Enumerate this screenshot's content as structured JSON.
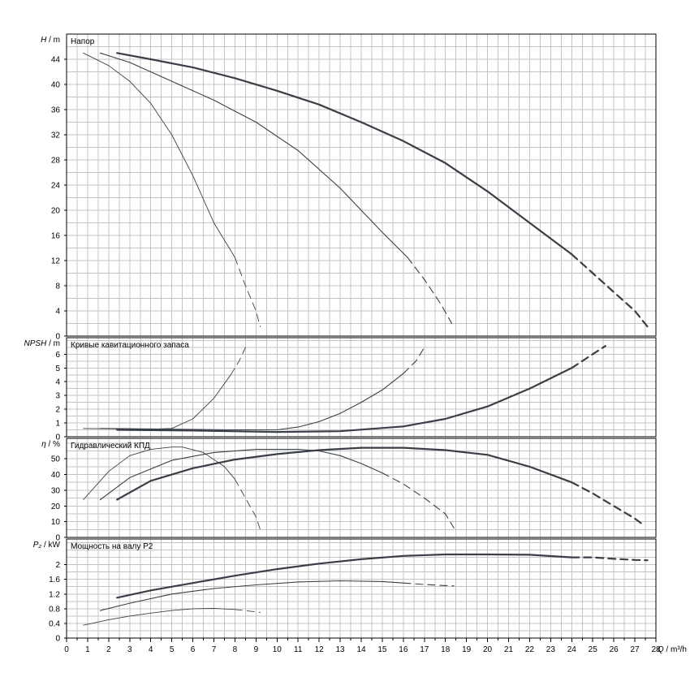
{
  "chart_data": {
    "type": "line",
    "x": {
      "label": "Q / m³/h",
      "range": [
        0,
        28
      ],
      "ticks": [
        0,
        1,
        2,
        3,
        4,
        5,
        6,
        7,
        8,
        9,
        10,
        11,
        12,
        13,
        14,
        15,
        16,
        17,
        18,
        19,
        20,
        21,
        22,
        23,
        24,
        25,
        26,
        27,
        28
      ]
    },
    "panels": [
      {
        "id": "head",
        "title": "Напор",
        "ylabel": "H / m",
        "ylim": [
          0,
          48
        ],
        "yticks": [
          0,
          4,
          8,
          12,
          16,
          20,
          24,
          28,
          32,
          36,
          40,
          44
        ],
        "series": [
          {
            "weight": "thin",
            "solid": [
              [
                0.8,
                45
              ],
              [
                2,
                43
              ],
              [
                3,
                40.5
              ],
              [
                4,
                37
              ],
              [
                5,
                32
              ],
              [
                6,
                25.5
              ],
              [
                7,
                18
              ],
              [
                8,
                12.5
              ]
            ],
            "dashed": [
              [
                8,
                12.5
              ],
              [
                8.5,
                8
              ],
              [
                9,
                4
              ],
              [
                9.2,
                1.5
              ]
            ]
          },
          {
            "weight": "medium",
            "solid": [
              [
                1.6,
                45
              ],
              [
                3,
                43.5
              ],
              [
                5,
                40.5
              ],
              [
                7,
                37.5
              ],
              [
                9,
                34
              ],
              [
                11,
                29.5
              ],
              [
                13,
                23.5
              ],
              [
                15,
                16.5
              ],
              [
                16.2,
                12.5
              ]
            ],
            "dashed": [
              [
                16.2,
                12.5
              ],
              [
                17,
                9
              ],
              [
                17.8,
                5
              ],
              [
                18.3,
                2
              ]
            ]
          },
          {
            "weight": "thick",
            "solid": [
              [
                2.4,
                45
              ],
              [
                4,
                44
              ],
              [
                6,
                42.7
              ],
              [
                8,
                41
              ],
              [
                10,
                39
              ],
              [
                12,
                36.8
              ],
              [
                14,
                34
              ],
              [
                16,
                31
              ],
              [
                18,
                27.5
              ],
              [
                20,
                23
              ],
              [
                22,
                18
              ],
              [
                24,
                13
              ]
            ],
            "dashed": [
              [
                24,
                13
              ],
              [
                25,
                10
              ],
              [
                26,
                7
              ],
              [
                27,
                4
              ],
              [
                27.6,
                1.5
              ]
            ]
          }
        ]
      },
      {
        "id": "npsh",
        "title": "Кривые кавитационного запаса",
        "ylabel": "NPSH / m",
        "ylim": [
          0,
          7.2
        ],
        "yticks": [
          0,
          1,
          2,
          3,
          4,
          5,
          6
        ],
        "series": [
          {
            "weight": "thin",
            "solid": [
              [
                0.8,
                0.6
              ],
              [
                4,
                0.55
              ],
              [
                5,
                0.6
              ],
              [
                6,
                1.3
              ],
              [
                7,
                2.8
              ],
              [
                7.8,
                4.5
              ]
            ],
            "dashed": [
              [
                7.8,
                4.5
              ],
              [
                8.2,
                5.5
              ],
              [
                8.5,
                6.5
              ]
            ]
          },
          {
            "weight": "medium",
            "solid": [
              [
                1.6,
                0.6
              ],
              [
                8,
                0.5
              ],
              [
                10,
                0.5
              ],
              [
                11,
                0.7
              ],
              [
                12,
                1.1
              ],
              [
                13,
                1.7
              ],
              [
                14,
                2.5
              ],
              [
                15,
                3.4
              ],
              [
                16,
                4.6
              ]
            ],
            "dashed": [
              [
                16,
                4.6
              ],
              [
                16.6,
                5.5
              ],
              [
                17,
                6.5
              ]
            ]
          },
          {
            "weight": "thick",
            "solid": [
              [
                2.4,
                0.5
              ],
              [
                6,
                0.45
              ],
              [
                10,
                0.35
              ],
              [
                13,
                0.4
              ],
              [
                16,
                0.75
              ],
              [
                18,
                1.3
              ],
              [
                20,
                2.2
              ],
              [
                22,
                3.5
              ],
              [
                24,
                5.0
              ]
            ],
            "dashed": [
              [
                24,
                5.0
              ],
              [
                25,
                6
              ],
              [
                25.6,
                6.6
              ]
            ]
          }
        ]
      },
      {
        "id": "eff",
        "title": "Гидравлический КПД",
        "ylabel": "η / %",
        "ylim": [
          0,
          63
        ],
        "yticks": [
          0,
          10,
          20,
          30,
          40,
          50
        ],
        "series": [
          {
            "weight": "thin",
            "solid": [
              [
                0.8,
                24
              ],
              [
                2,
                42
              ],
              [
                3,
                52
              ],
              [
                4,
                56
              ],
              [
                5,
                57.5
              ],
              [
                5.5,
                57.5
              ],
              [
                6.5,
                54
              ],
              [
                7.5,
                45
              ],
              [
                8,
                37
              ]
            ],
            "dashed": [
              [
                8,
                37
              ],
              [
                8.5,
                25
              ],
              [
                9,
                13
              ],
              [
                9.2,
                5
              ]
            ]
          },
          {
            "weight": "medium",
            "solid": [
              [
                1.6,
                24
              ],
              [
                3,
                38
              ],
              [
                5,
                49
              ],
              [
                7,
                54
              ],
              [
                9,
                56
              ],
              [
                11,
                56
              ],
              [
                12,
                55
              ],
              [
                13,
                52
              ],
              [
                14,
                47
              ],
              [
                15,
                41
              ]
            ],
            "dashed": [
              [
                15,
                41
              ],
              [
                16,
                34
              ],
              [
                17,
                25
              ],
              [
                18,
                15
              ],
              [
                18.4,
                6
              ]
            ]
          },
          {
            "weight": "thick",
            "solid": [
              [
                2.4,
                24
              ],
              [
                4,
                36
              ],
              [
                6,
                44
              ],
              [
                8,
                49.5
              ],
              [
                10,
                53
              ],
              [
                12,
                55.5
              ],
              [
                14,
                57
              ],
              [
                16,
                57
              ],
              [
                18,
                55.5
              ],
              [
                20,
                52.5
              ],
              [
                22,
                45
              ],
              [
                24,
                35
              ]
            ],
            "dashed": [
              [
                24,
                35
              ],
              [
                25,
                28
              ],
              [
                26,
                20
              ],
              [
                27,
                12
              ],
              [
                27.4,
                8
              ]
            ]
          }
        ]
      },
      {
        "id": "power",
        "title": "Мощность на валу P2",
        "ylabel": "P₂ / kW",
        "ylim": [
          0,
          2.7
        ],
        "yticks": [
          0,
          0.4,
          0.8,
          1.2,
          1.6,
          2
        ],
        "series": [
          {
            "weight": "thin",
            "solid": [
              [
                0.8,
                0.35
              ],
              [
                2,
                0.5
              ],
              [
                3,
                0.6
              ],
              [
                4,
                0.68
              ],
              [
                5,
                0.75
              ],
              [
                6,
                0.8
              ],
              [
                7,
                0.81
              ],
              [
                8,
                0.78
              ]
            ],
            "dashed": [
              [
                8,
                0.78
              ],
              [
                8.6,
                0.74
              ],
              [
                9.2,
                0.7
              ]
            ]
          },
          {
            "weight": "medium",
            "solid": [
              [
                1.6,
                0.75
              ],
              [
                3,
                0.95
              ],
              [
                5,
                1.2
              ],
              [
                7,
                1.35
              ],
              [
                9,
                1.45
              ],
              [
                11,
                1.53
              ],
              [
                13,
                1.56
              ],
              [
                15,
                1.54
              ],
              [
                16,
                1.5
              ]
            ],
            "dashed": [
              [
                16,
                1.5
              ],
              [
                17,
                1.46
              ],
              [
                18,
                1.43
              ],
              [
                18.4,
                1.42
              ]
            ]
          },
          {
            "weight": "thick",
            "solid": [
              [
                2.4,
                1.1
              ],
              [
                4,
                1.3
              ],
              [
                6,
                1.5
              ],
              [
                8,
                1.7
              ],
              [
                10,
                1.88
              ],
              [
                12,
                2.03
              ],
              [
                14,
                2.15
              ],
              [
                16,
                2.24
              ],
              [
                18,
                2.28
              ],
              [
                20,
                2.28
              ],
              [
                22,
                2.27
              ],
              [
                24,
                2.2
              ]
            ],
            "dashed": [
              [
                24,
                2.2
              ],
              [
                25,
                2.2
              ],
              [
                26,
                2.16
              ],
              [
                27,
                2.13
              ],
              [
                27.6,
                2.12
              ]
            ]
          }
        ]
      }
    ]
  },
  "colors": {
    "curve": "#3a3f47",
    "grid": "#c4c4c4",
    "frame": "#000000"
  }
}
